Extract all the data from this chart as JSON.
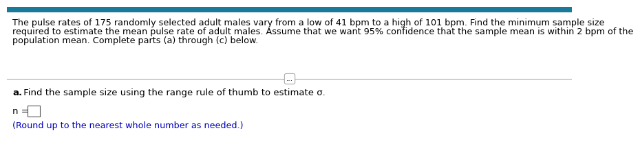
{
  "bg_color": "#ffffff",
  "top_bar_color": "#1a7a9a",
  "paragraph_text_line1": "The pulse rates of 175 randomly selected adult males vary from a low of 41 bpm to a high of 101 bpm. Find the minimum sample size",
  "paragraph_text_line2": "required to estimate the mean pulse rate of adult males. Assume that we want 95% confidence that the sample mean is within 2 bpm of the",
  "paragraph_text_line3": "population mean. Complete parts (a) through (c) below.",
  "divider_color": "#aaaaaa",
  "dots_text": "...",
  "part_a_bold": "a.",
  "part_a_rest": " Find the sample size using the range rule of thumb to estimate σ.",
  "n_label": "n =",
  "box_color": "#ffffff",
  "box_border": "#555555",
  "round_note": "(Round up to the nearest whole number as needed.)",
  "round_note_color": "#0000bb",
  "text_color": "#000000",
  "font_size_para": 9.2,
  "font_size_part": 9.5,
  "font_size_note": 9.2,
  "top_bar_height": 0.038
}
